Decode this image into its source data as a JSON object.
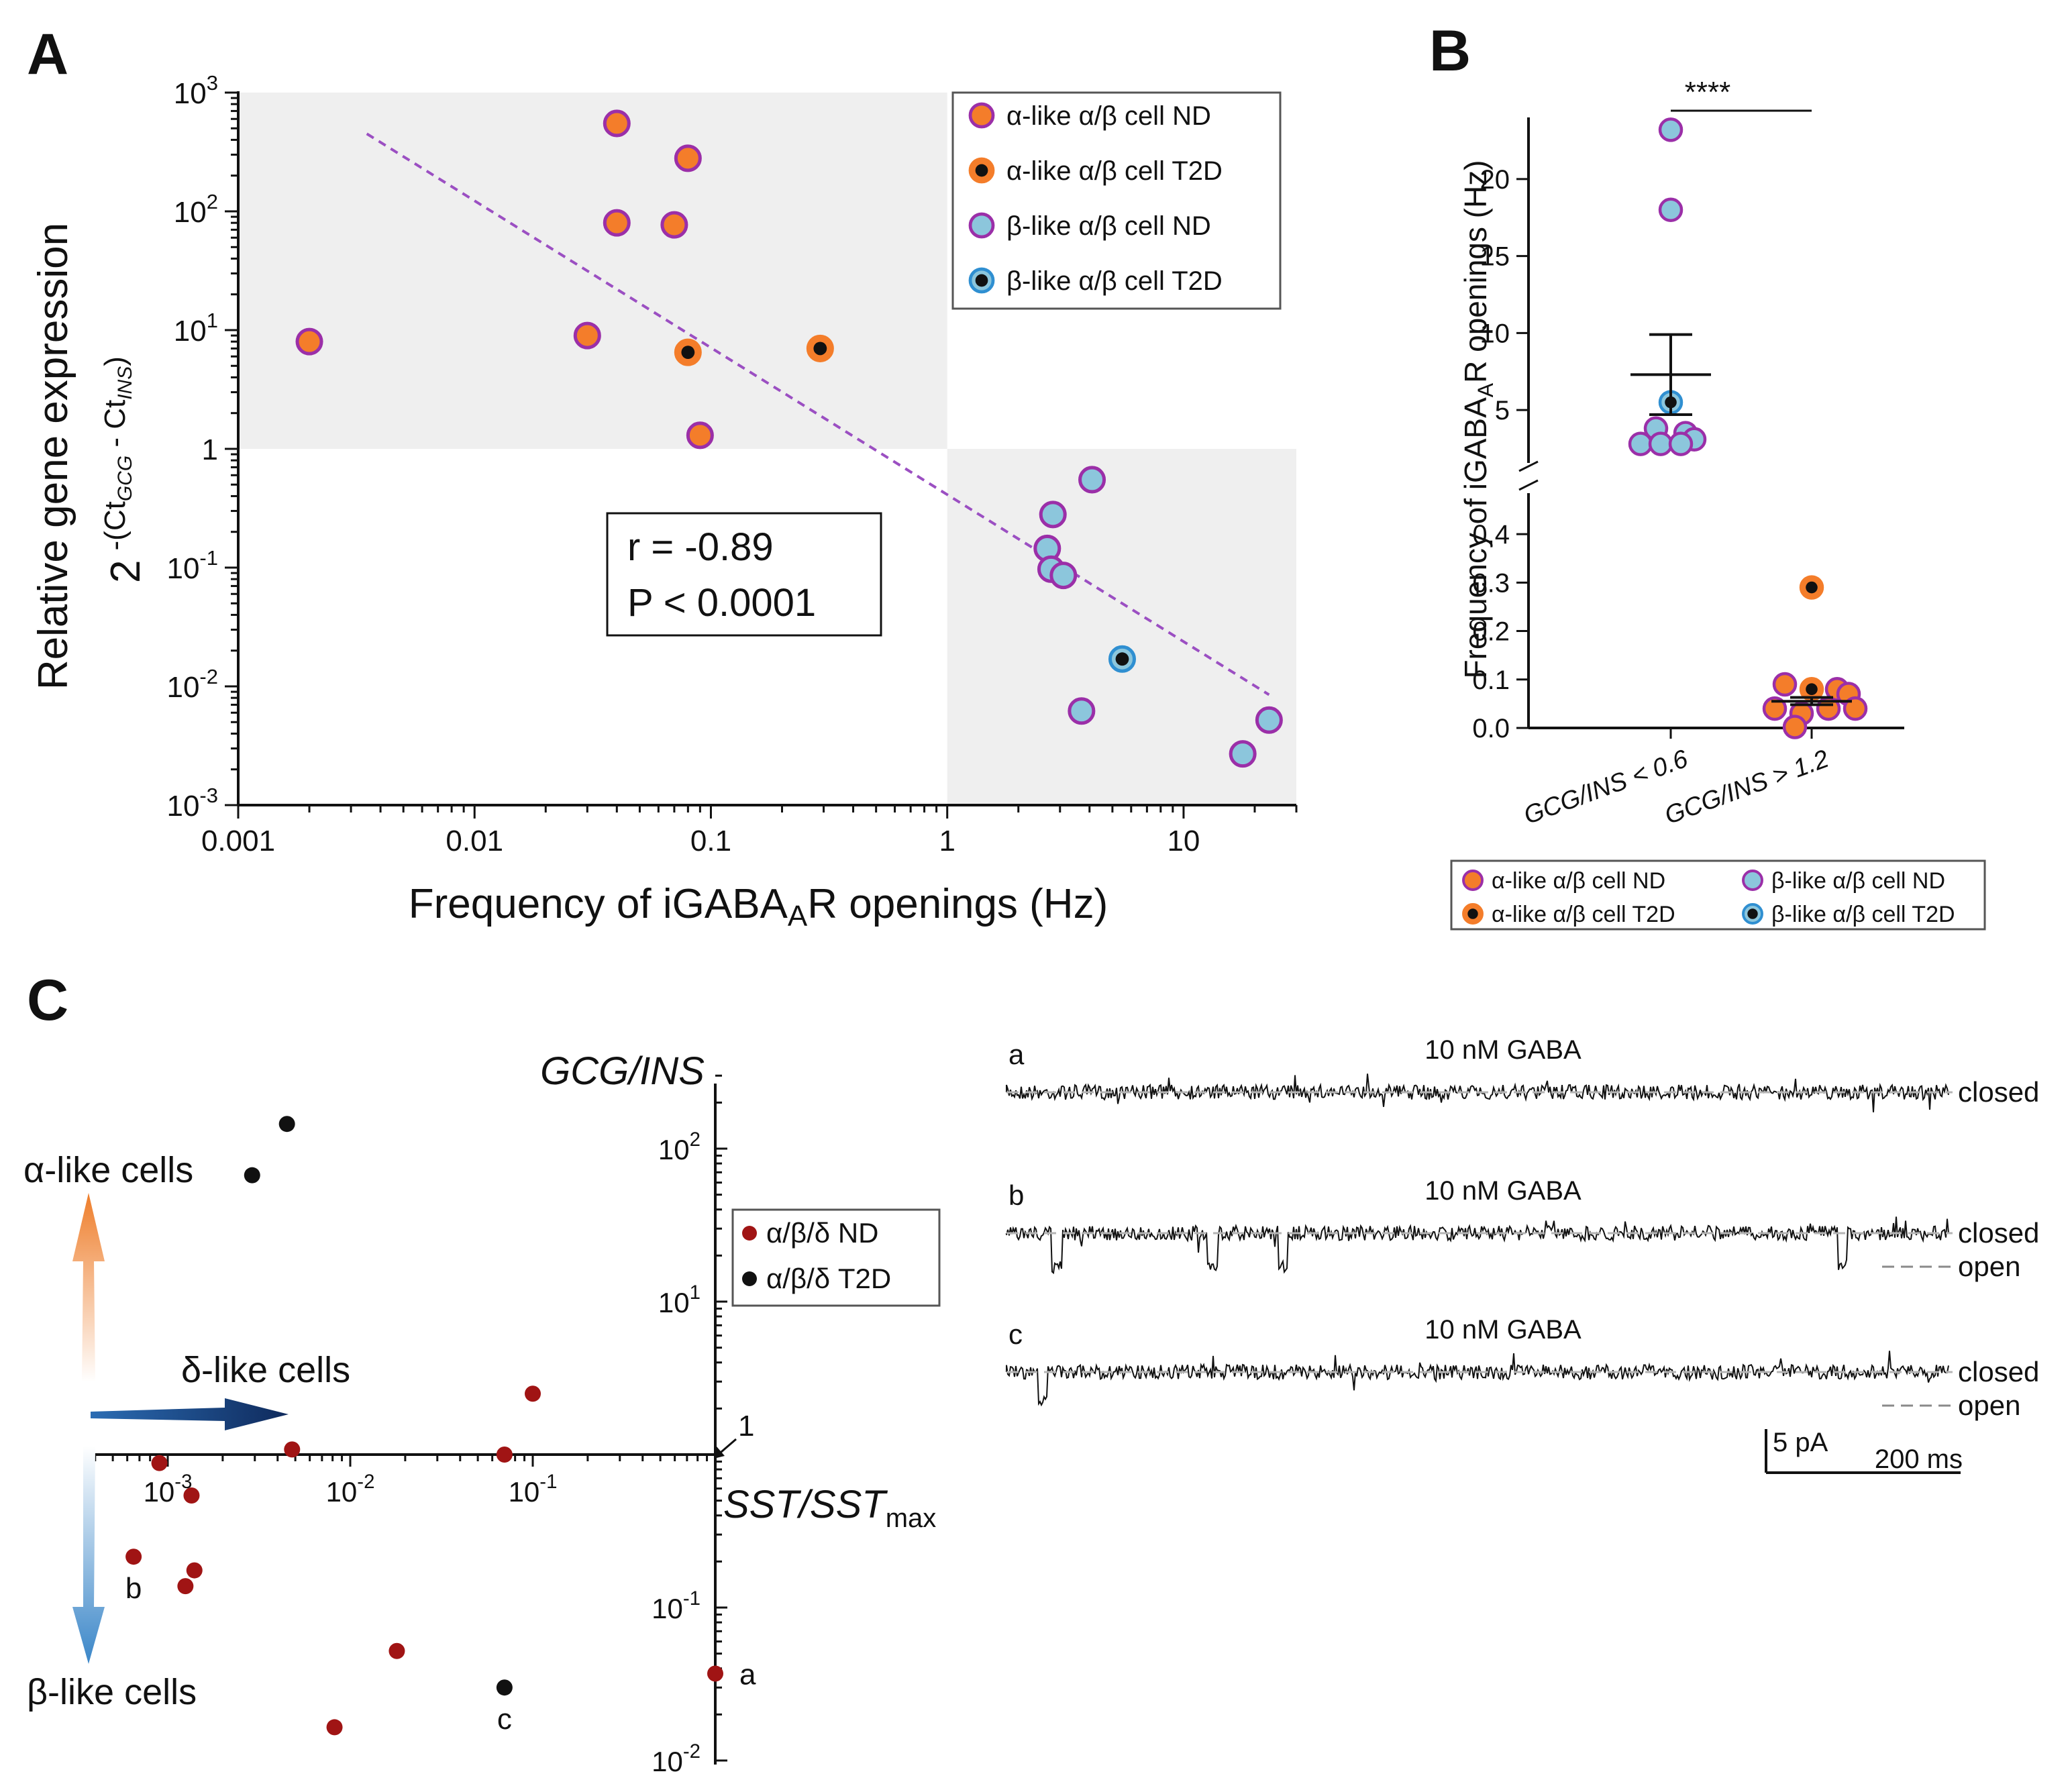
{
  "panels": {
    "a": "A",
    "b": "B",
    "c": "C"
  },
  "colors": {
    "orange": "#f47d2a",
    "alpha_edge": "#9b2fa8",
    "light_blue": "#8cc6dc",
    "blue_edge": "#2f8fd1",
    "trend": "#9b4fc2",
    "shade": "#efefef",
    "dark_red": "#a01414",
    "black": "#111111"
  },
  "chart_data": [
    {
      "id": "A",
      "type": "scatter",
      "xlabel": "Frequency of iGABAₐR openings (Hz)",
      "xlabel_main": "Frequency of iGABA",
      "xlabel_sub": "A",
      "xlabel_end": "R openings (Hz)",
      "ylabel": "Relative gene expression",
      "ylabel2": {
        "base": "2",
        "paren_open": "-(Ct",
        "sub1": "GCG",
        "mid": " - Ct",
        "sub2": "INS",
        "paren_close": ")"
      },
      "xscale": "log",
      "yscale": "log",
      "xlim": [
        0.001,
        30
      ],
      "ylim": [
        0.001,
        1000
      ],
      "xticks": [
        {
          "v": 0.001,
          "label": "0.001"
        },
        {
          "v": 0.01,
          "label": "0.01"
        },
        {
          "v": 0.1,
          "label": "0.1"
        },
        {
          "v": 1,
          "label": "1"
        },
        {
          "v": 10,
          "label": "10"
        }
      ],
      "yticks": [
        {
          "v": 1000,
          "base": "10",
          "exp": "3"
        },
        {
          "v": 100,
          "base": "10",
          "exp": "2"
        },
        {
          "v": 10,
          "base": "10",
          "exp": "1"
        },
        {
          "v": 1,
          "base": "1",
          "exp": ""
        },
        {
          "v": 0.1,
          "base": "10",
          "exp": "-1"
        },
        {
          "v": 0.01,
          "base": "10",
          "exp": "-2"
        },
        {
          "v": 0.001,
          "base": "10",
          "exp": "-3"
        }
      ],
      "shaded_regions": [
        {
          "x": [
            0.001,
            1
          ],
          "y": [
            1,
            1000
          ]
        },
        {
          "x": [
            1,
            30
          ],
          "y": [
            0.001,
            1
          ]
        }
      ],
      "trendline": {
        "x": [
          0.0035,
          23
        ],
        "y": [
          450,
          0.0085
        ]
      },
      "series": [
        {
          "name": "α-like α/β cell ND",
          "style": "alpha_nd",
          "points": [
            [
              0.002,
              8
            ],
            [
              0.04,
              550
            ],
            [
              0.04,
              80
            ],
            [
              0.08,
              280
            ],
            [
              0.07,
              77
            ],
            [
              0.03,
              9
            ],
            [
              0.09,
              1.3
            ]
          ]
        },
        {
          "name": "α-like α/β cell T2D",
          "style": "alpha_t2d",
          "points": [
            [
              0.08,
              6.5
            ],
            [
              0.29,
              7
            ]
          ]
        },
        {
          "name": "β-like α/β cell ND",
          "style": "beta_nd",
          "points": [
            [
              4.1,
              0.55
            ],
            [
              2.8,
              0.28
            ],
            [
              2.65,
              0.145
            ],
            [
              2.75,
              0.097
            ],
            [
              3.1,
              0.086
            ],
            [
              3.7,
              0.0062
            ],
            [
              23,
              0.0052
            ],
            [
              17.8,
              0.0027
            ]
          ]
        },
        {
          "name": "β-like α/β cell T2D",
          "style": "beta_t2d",
          "points": [
            [
              5.5,
              0.017
            ]
          ]
        }
      ],
      "annotation": {
        "r": "r = -0.89",
        "p": "P < 0.0001"
      },
      "legend_position": "top-right"
    },
    {
      "id": "B",
      "type": "scatter",
      "ylabel": "Frequency of iGABAₐR openings (Hz)",
      "ylabel_main": "Frequency of iGABA",
      "ylabel_sub": "A",
      "ylabel_end": "R openings (Hz)",
      "categories": [
        "GCG/INS < 0.6",
        "GCG/INS > 1.2"
      ],
      "upper_ylim": [
        2,
        24
      ],
      "upper_yticks": [
        5,
        10,
        15,
        20
      ],
      "lower_ylim": [
        0,
        0.45
      ],
      "lower_yticks": [
        0.0,
        0.1,
        0.2,
        0.3,
        0.4
      ],
      "lower_ytick_labels": [
        "0.0",
        "0.1",
        "0.2",
        "0.3",
        "0.4"
      ],
      "groups": [
        {
          "category": "GCG/INS < 0.6",
          "mean": 7.3,
          "sem_upper": 9.9,
          "sem_lower": 4.7,
          "points": [
            {
              "v": 23.2,
              "style": "beta_nd",
              "dx": 0
            },
            {
              "v": 18,
              "style": "beta_nd",
              "dx": 0
            },
            {
              "v": 5.5,
              "style": "beta_t2d",
              "dx": 0
            },
            {
              "v": 3.8,
              "style": "beta_nd",
              "dx": -22
            },
            {
              "v": 3.5,
              "style": "beta_nd",
              "dx": 22
            },
            {
              "v": 3.1,
              "style": "beta_nd",
              "dx": 35
            },
            {
              "v": 2.8,
              "style": "beta_nd",
              "dx": -45
            },
            {
              "v": 2.8,
              "style": "beta_nd",
              "dx": -15
            },
            {
              "v": 2.8,
              "style": "beta_nd",
              "dx": 15
            }
          ]
        },
        {
          "category": "GCG/INS > 1.2",
          "mean": 0.055,
          "sem_upper": 0.063,
          "sem_lower": 0.048,
          "points": [
            {
              "v": 0.29,
              "style": "alpha_t2d",
              "dx": 0
            },
            {
              "v": 0.09,
              "style": "alpha_nd",
              "dx": -40
            },
            {
              "v": 0.08,
              "style": "alpha_t2d",
              "dx": 0
            },
            {
              "v": 0.08,
              "style": "alpha_nd",
              "dx": 38
            },
            {
              "v": 0.07,
              "style": "alpha_nd",
              "dx": 55
            },
            {
              "v": 0.04,
              "style": "alpha_nd",
              "dx": -55
            },
            {
              "v": 0.04,
              "style": "alpha_nd",
              "dx": 25
            },
            {
              "v": 0.04,
              "style": "alpha_nd",
              "dx": 65
            },
            {
              "v": 0.03,
              "style": "alpha_nd",
              "dx": -15
            },
            {
              "v": 0.002,
              "style": "alpha_nd",
              "dx": -25
            }
          ]
        }
      ],
      "significance": "****",
      "legend": [
        {
          "label": "α-like α/β cell ND",
          "style": "alpha_nd"
        },
        {
          "label": "β-like α/β cell ND",
          "style": "beta_nd"
        },
        {
          "label": "α-like α/β cell T2D",
          "style": "alpha_t2d"
        },
        {
          "label": "β-like α/β cell T2D",
          "style": "beta_t2d"
        }
      ]
    },
    {
      "id": "C",
      "type": "scatter",
      "xlabel": "SST/SSTmax",
      "xlabel_main": "SST/SST",
      "xlabel_sub": "max",
      "ylabel": "GCG/INS",
      "xscale": "log",
      "yscale": "log",
      "xlim": [
        0.0004,
        1
      ],
      "ylim": [
        0.01,
        300
      ],
      "xticks": [
        {
          "v": 0.001,
          "base": "10",
          "exp": "-3"
        },
        {
          "v": 0.01,
          "base": "10",
          "exp": "-2"
        },
        {
          "v": 0.1,
          "base": "10",
          "exp": "-1"
        }
      ],
      "yticks": [
        {
          "v": 100,
          "base": "10",
          "exp": "2"
        },
        {
          "v": 10,
          "base": "10",
          "exp": "1"
        },
        {
          "v": 0.1,
          "base": "10",
          "exp": "-1"
        },
        {
          "v": 0.01,
          "base": "10",
          "exp": "-2"
        }
      ],
      "origin_label": "1",
      "series": [
        {
          "name": "α/β/δ ND",
          "style": "nd",
          "points": [
            [
              0.1,
              2.5
            ],
            [
              0.0048,
              1.08
            ],
            [
              0.07,
              1.0
            ],
            [
              0.0009,
              0.88
            ],
            [
              0.00135,
              0.54
            ],
            [
              0.00065,
              0.215
            ],
            [
              0.0014,
              0.175
            ],
            [
              0.00125,
              0.138
            ],
            [
              0.018,
              0.052
            ],
            [
              0.0082,
              0.0165
            ],
            [
              1.0,
              0.037
            ]
          ]
        },
        {
          "name": "α/β/δ T2D",
          "style": "t2d",
          "points": [
            [
              0.0045,
              145
            ],
            [
              0.0029,
              67
            ],
            [
              0.07,
              0.03
            ]
          ]
        }
      ],
      "point_labels": [
        {
          "label": "b",
          "x": 0.00065,
          "y": 0.215
        },
        {
          "label": "c",
          "x": 0.07,
          "y": 0.03
        },
        {
          "label": "a",
          "x": 1.0,
          "y": 0.037
        }
      ],
      "arrows": {
        "alpha": "α-like cells",
        "delta": "δ-like cells",
        "beta": "β-like cells"
      }
    }
  ],
  "traces": {
    "items": [
      {
        "letter": "a",
        "title": "10 nM GABA",
        "closed": "closed",
        "open": ""
      },
      {
        "letter": "b",
        "title": "10 nM GABA",
        "closed": "closed",
        "open": "open"
      },
      {
        "letter": "c",
        "title": "10 nM GABA",
        "closed": "closed",
        "open": "open"
      }
    ],
    "scale_current": "5 pA",
    "scale_time": "200 ms"
  }
}
